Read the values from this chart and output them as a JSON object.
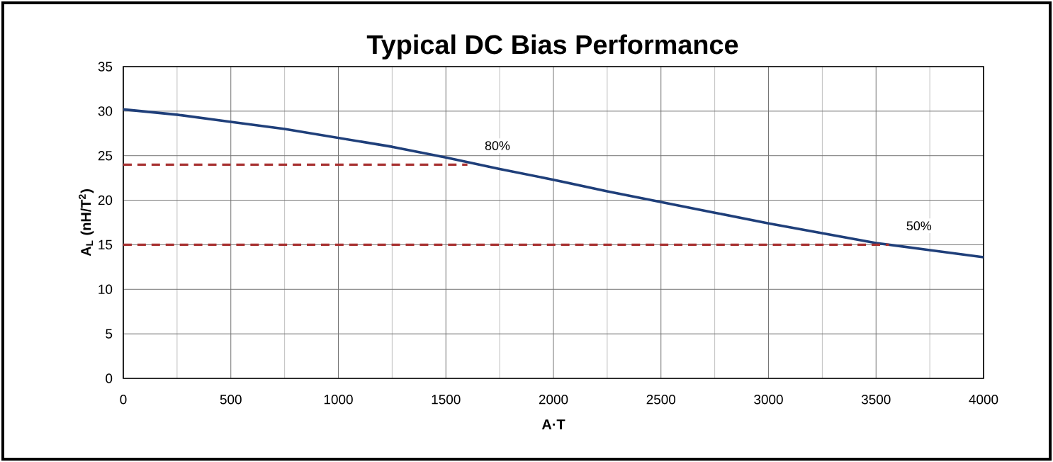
{
  "chart_data": {
    "type": "line",
    "title": "Typical DC Bias Performance",
    "xlabel": "A·T",
    "ylabel": "A$_{L}$ (nH/T$^{2}$)",
    "xlim": [
      0,
      4000
    ],
    "xticks": [
      0,
      500,
      1000,
      1500,
      2000,
      2500,
      3000,
      3500,
      4000
    ],
    "ylim": [
      0,
      35
    ],
    "yticks": [
      0,
      5,
      10,
      15,
      20,
      25,
      30,
      35
    ],
    "grid": true,
    "marker": "none",
    "series": [
      {
        "color": "#1f3f7a",
        "line_style": "solid",
        "x": [
          0,
          250,
          500,
          750,
          1000,
          1250,
          1500,
          1750,
          2000,
          2250,
          2500,
          2750,
          3000,
          3250,
          3500,
          3750,
          4000
        ],
        "values": [
          30.2,
          29.6,
          28.8,
          28.0,
          27.0,
          26.0,
          24.8,
          23.5,
          22.3,
          21.0,
          19.8,
          18.6,
          17.4,
          16.3,
          15.2,
          14.4,
          13.6
        ]
      },
      {
        "color": "#a83232",
        "line_style": "dashed",
        "x": [
          0,
          1600
        ],
        "values": [
          24,
          24
        ]
      },
      {
        "color": "#a83232",
        "line_style": "dashed",
        "x": [
          0,
          3560
        ],
        "values": [
          15,
          15
        ]
      }
    ],
    "annotations": [
      {
        "text": "80%",
        "x": 1600,
        "y": 24
      },
      {
        "text": "50%",
        "x": 3560,
        "y": 15
      }
    ]
  }
}
